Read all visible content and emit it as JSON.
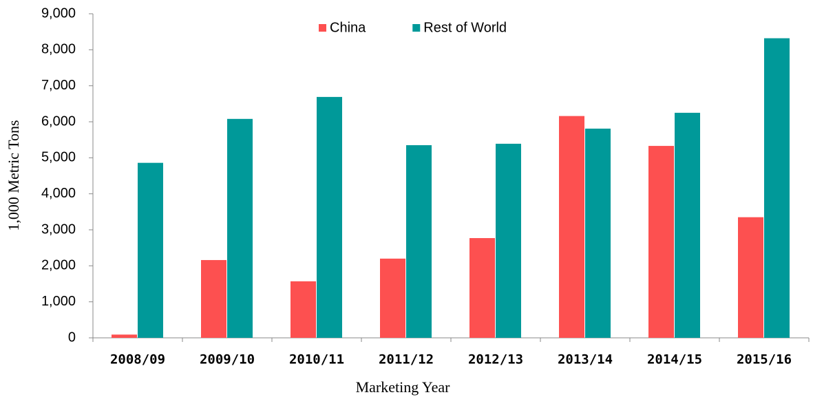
{
  "chart_data": {
    "type": "bar",
    "categories": [
      "2008/09",
      "2009/10",
      "2010/11",
      "2011/12",
      "2012/13",
      "2013/14",
      "2014/15",
      "2015/16"
    ],
    "series": [
      {
        "name": "China",
        "color": "#fd5050",
        "values": [
          90,
          2160,
          1570,
          2200,
          2770,
          6160,
          5330,
          3350
        ]
      },
      {
        "name": "Rest of World",
        "color": "#009999",
        "values": [
          4860,
          6080,
          6690,
          5350,
          5390,
          5810,
          6250,
          8320
        ]
      }
    ],
    "x_label": "Marketing Year",
    "y_label": "1,000 Metric Tons",
    "ylim": [
      0,
      9000
    ],
    "yticks": [
      0,
      {
        "value": 1000,
        "label": "1,000"
      },
      {
        "value": 2000,
        "label": "2,000"
      },
      {
        "value": 3000,
        "label": "3,000"
      },
      {
        "value": 4000,
        "label": "4,000"
      },
      {
        "value": 5000,
        "label": "5,000"
      },
      {
        "value": 6000,
        "label": "6,000"
      },
      {
        "value": 7000,
        "label": "7,000"
      },
      {
        "value": 8000,
        "label": "8,000"
      },
      {
        "value": 9000,
        "label": "9,000"
      }
    ],
    "legend": "top"
  }
}
